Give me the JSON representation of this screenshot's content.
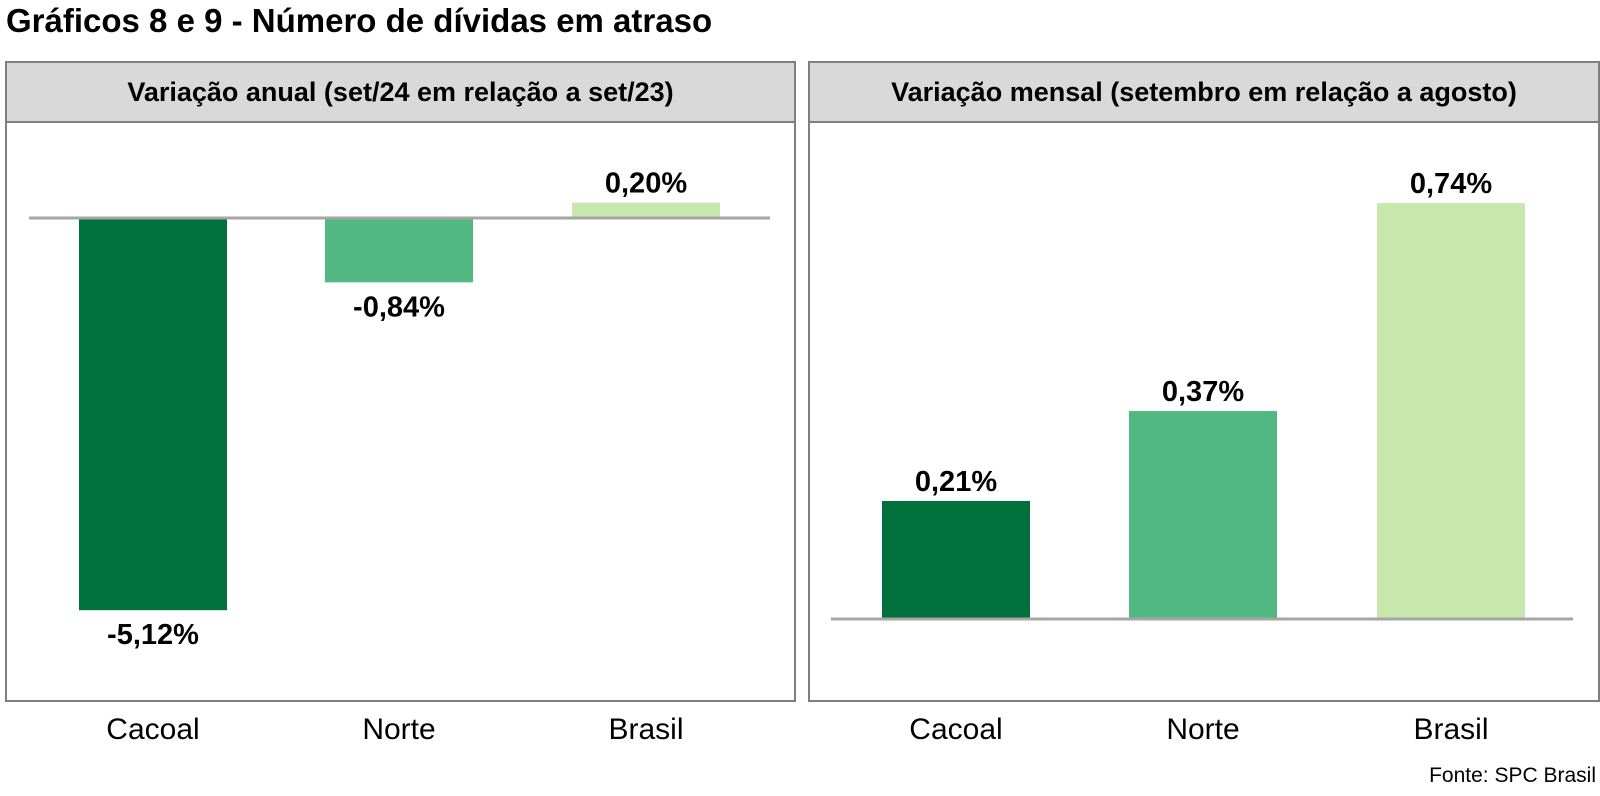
{
  "title": "Gráficos 8 e 9 - Número de dívidas em atraso",
  "source": "Fonte: SPC Brasil",
  "colors": {
    "Cacoal": "#00703c",
    "Norte": "#50b880",
    "Brasil": "#c7e7ad",
    "axis": "#a6a6a6"
  },
  "chart_data": [
    {
      "type": "bar",
      "title": "Variação anual (set/24 em relação a set/23)",
      "categories": [
        "Cacoal",
        "Norte",
        "Brasil"
      ],
      "values": [
        -5.12,
        -0.84,
        0.2
      ],
      "value_labels": [
        "-5,12%",
        "-0,84%",
        "0,20%"
      ],
      "unit": "%",
      "ylim": [
        -5.12,
        0.2
      ],
      "grid": false,
      "legend": "none"
    },
    {
      "type": "bar",
      "title": "Variação mensal (setembro em relação a agosto)",
      "categories": [
        "Cacoal",
        "Norte",
        "Brasil"
      ],
      "values": [
        0.21,
        0.37,
        0.74
      ],
      "value_labels": [
        "0,21%",
        "0,37%",
        "0,74%"
      ],
      "unit": "%",
      "ylim": [
        0,
        0.74
      ],
      "grid": false,
      "legend": "none"
    }
  ]
}
